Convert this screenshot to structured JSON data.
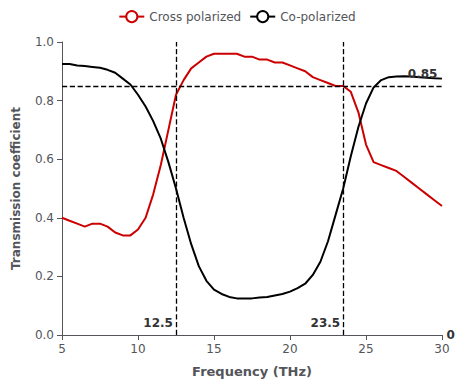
{
  "chart_data": {
    "type": "line",
    "xlabel": "Frequency (THz)",
    "ylabel": "Transmission coefficient",
    "xlim": [
      5,
      30
    ],
    "ylim": [
      0,
      1
    ],
    "xticks": [
      5,
      10,
      15,
      20,
      25,
      30
    ],
    "yticks": [
      {
        "value": 0,
        "label": "0.0"
      },
      0.2,
      0.4,
      0.6,
      0.8,
      {
        "value": 1,
        "label": "1.0"
      }
    ],
    "grid": false,
    "legend": "top",
    "vlines": [
      12.5,
      23.5
    ],
    "hlines": [
      0.85
    ],
    "annotations": [
      {
        "text": "12.5",
        "x": 12.3,
        "y": 0.02
      },
      {
        "text": "23.5",
        "x": 23.3,
        "y": 0.02
      },
      {
        "text": "0.85",
        "x": 29.7,
        "y": 0.87
      },
      {
        "text": "0",
        "x": 30.3,
        "y": 0
      }
    ],
    "series": [
      {
        "name": "Cross polarized",
        "color": "#cc0000",
        "x": [
          5.0,
          5.5,
          6.0,
          6.5,
          7.0,
          7.5,
          8.0,
          8.5,
          9.0,
          9.5,
          10.0,
          10.5,
          11.0,
          11.5,
          12.0,
          12.5,
          13.0,
          13.5,
          14.0,
          14.5,
          15.0,
          15.5,
          16.0,
          16.5,
          17.0,
          17.5,
          18.0,
          18.5,
          19.0,
          19.5,
          20.0,
          20.5,
          21.0,
          21.5,
          22.0,
          22.5,
          23.0,
          23.5,
          24.0,
          24.5,
          25.0,
          25.5,
          26.0,
          26.5,
          27.0,
          27.5,
          28.0,
          28.5,
          29.0,
          29.5,
          30.0
        ],
        "values": [
          0.4,
          0.39,
          0.38,
          0.37,
          0.38,
          0.38,
          0.37,
          0.35,
          0.34,
          0.34,
          0.36,
          0.4,
          0.48,
          0.58,
          0.7,
          0.82,
          0.87,
          0.91,
          0.93,
          0.95,
          0.96,
          0.96,
          0.96,
          0.96,
          0.95,
          0.95,
          0.94,
          0.94,
          0.93,
          0.93,
          0.92,
          0.91,
          0.9,
          0.88,
          0.87,
          0.86,
          0.85,
          0.85,
          0.83,
          0.76,
          0.65,
          0.59,
          0.58,
          0.57,
          0.56,
          0.54,
          0.52,
          0.5,
          0.48,
          0.46,
          0.44
        ]
      },
      {
        "name": "Co-polarized",
        "color": "#000000",
        "x": [
          5.0,
          5.5,
          6.0,
          6.5,
          7.0,
          7.5,
          8.0,
          8.5,
          9.0,
          9.5,
          10.0,
          10.5,
          11.0,
          11.5,
          12.0,
          12.5,
          13.0,
          13.5,
          14.0,
          14.5,
          15.0,
          15.5,
          16.0,
          16.5,
          17.0,
          17.5,
          18.0,
          18.5,
          19.0,
          19.5,
          20.0,
          20.5,
          21.0,
          21.5,
          22.0,
          22.5,
          23.0,
          23.5,
          24.0,
          24.5,
          25.0,
          25.5,
          26.0,
          26.5,
          27.0,
          27.5,
          28.0,
          28.5,
          29.0,
          29.5,
          30.0
        ],
        "values": [
          0.925,
          0.925,
          0.92,
          0.918,
          0.915,
          0.912,
          0.905,
          0.895,
          0.875,
          0.855,
          0.82,
          0.78,
          0.73,
          0.67,
          0.59,
          0.5,
          0.4,
          0.31,
          0.235,
          0.185,
          0.155,
          0.14,
          0.13,
          0.125,
          0.125,
          0.125,
          0.128,
          0.13,
          0.135,
          0.14,
          0.148,
          0.16,
          0.175,
          0.205,
          0.25,
          0.32,
          0.41,
          0.5,
          0.61,
          0.71,
          0.79,
          0.845,
          0.87,
          0.88,
          0.882,
          0.883,
          0.882,
          0.88,
          0.878,
          0.876,
          0.875
        ]
      }
    ]
  }
}
